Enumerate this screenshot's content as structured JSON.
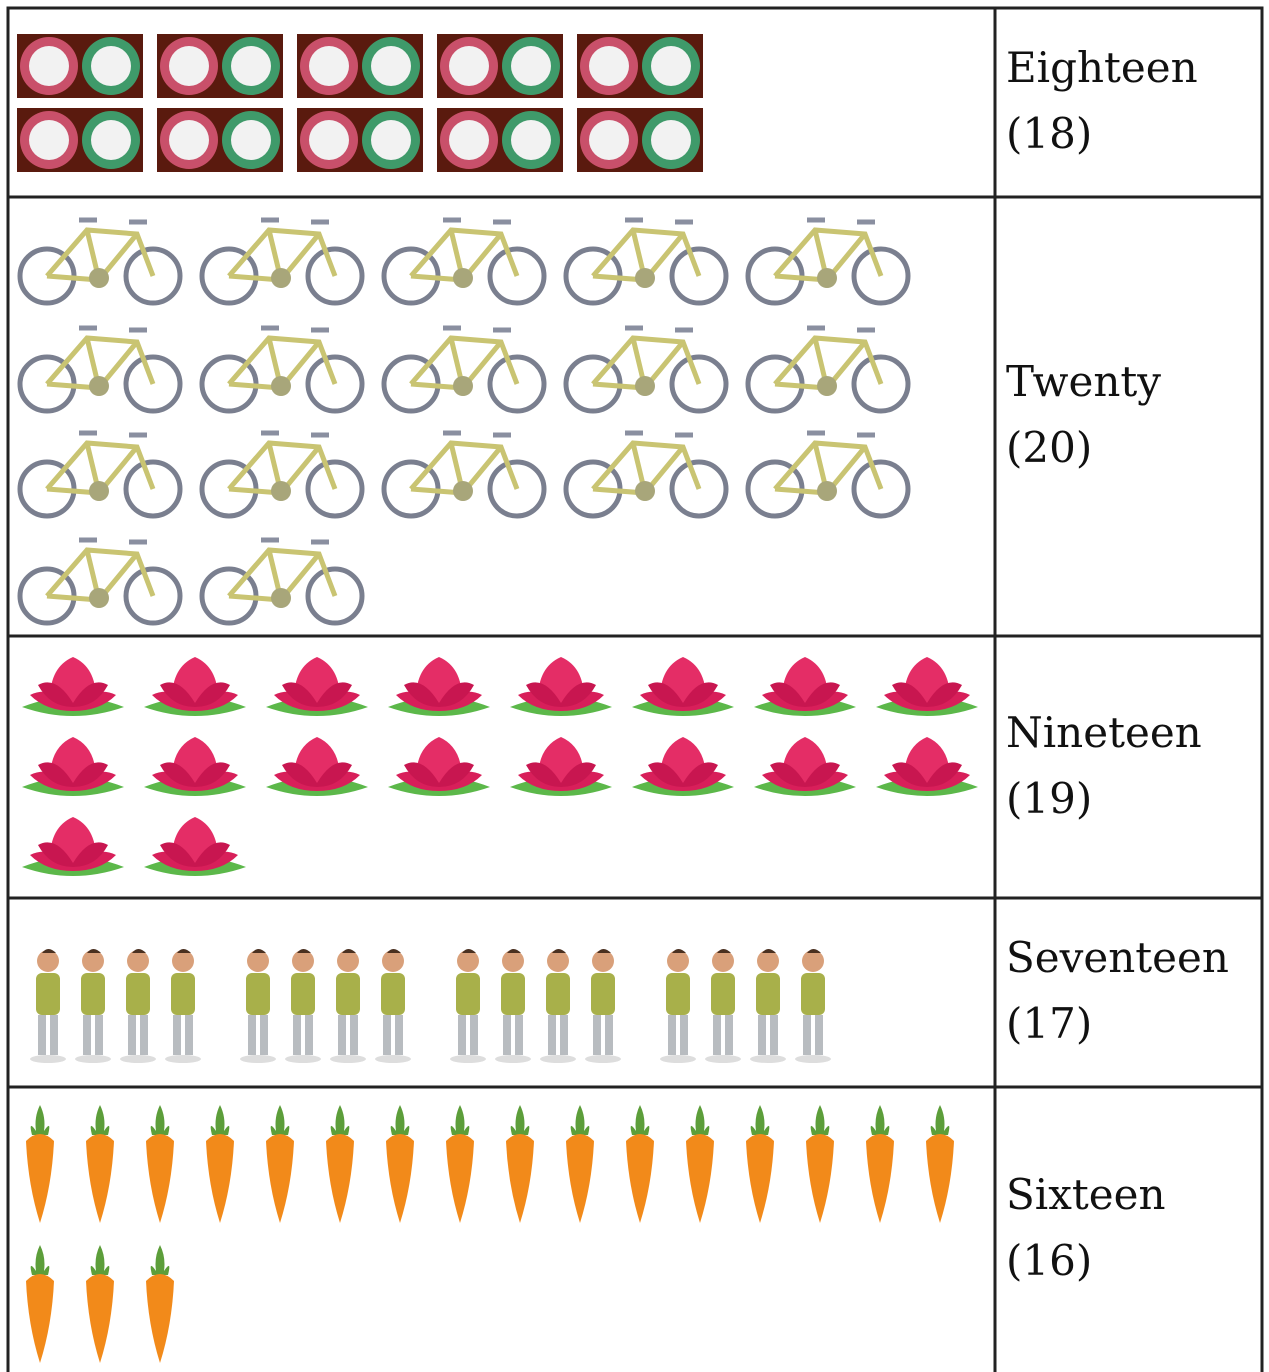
{
  "rows": [
    {
      "word": "Eighteen",
      "numeral": "(18)"
    },
    {
      "word": "Twenty",
      "numeral": "(20)"
    },
    {
      "word": "Nineteen",
      "numeral": "(19)"
    },
    {
      "word": "Seventeen",
      "numeral": "(17)"
    },
    {
      "word": "Sixteen",
      "numeral": "(16)"
    }
  ]
}
